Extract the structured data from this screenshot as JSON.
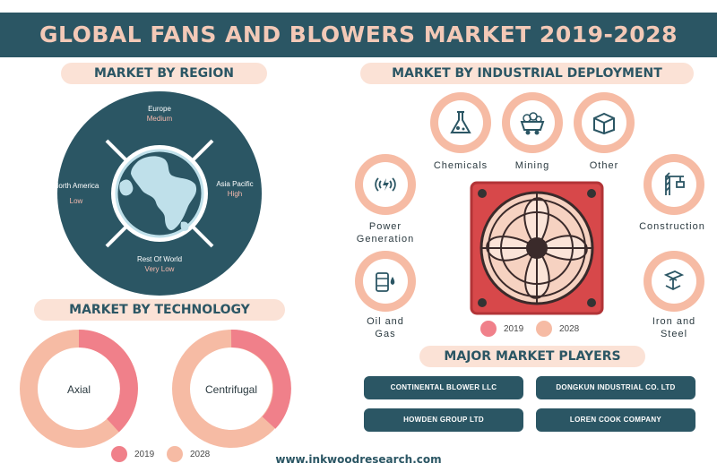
{
  "title": "GLOBAL FANS AND BLOWERS MARKET 2019-2028",
  "region_section": {
    "heading": "MARKET BY REGION",
    "segments": [
      {
        "region": "Europe",
        "level": "Medium"
      },
      {
        "region": "Asia Pacific",
        "level": "High"
      },
      {
        "region": "Rest Of World",
        "level": "Very Low"
      },
      {
        "region": "North America",
        "level": "Low"
      }
    ],
    "colors": {
      "ring": "#2b5664",
      "globe_land": "#bfe0ea",
      "globe_water": "#2b5664"
    }
  },
  "technology_section": {
    "heading": "MARKET BY TECHNOLOGY",
    "items": [
      "Axial",
      "Centrifugal"
    ],
    "legend": [
      "2019",
      "2028"
    ],
    "colors": {
      "y2019": "#f0808a",
      "y2028": "#f6bba4"
    }
  },
  "industrial_section": {
    "heading": "MARKET BY INDUSTRIAL DEPLOYMENT",
    "items": [
      {
        "label": "Chemicals",
        "icon": "flask-icon"
      },
      {
        "label": "Mining",
        "icon": "mine-cart-icon"
      },
      {
        "label": "Other",
        "icon": "box-icon"
      },
      {
        "label_lines": [
          "Power",
          "Generation"
        ],
        "icon": "power-icon"
      },
      {
        "label": "Construction",
        "icon": "crane-icon"
      },
      {
        "label_lines": [
          "Oil and",
          "Gas"
        ],
        "icon": "oil-barrel-icon"
      },
      {
        "label_lines": [
          "Iron and",
          "Steel"
        ],
        "icon": "steel-beam-icon"
      }
    ],
    "legend": [
      "2019",
      "2028"
    ]
  },
  "players_section": {
    "heading": "MAJOR MARKET PLAYERS",
    "players": [
      "CONTINENTAL BLOWER LLC",
      "DONGKUN INDUSTRIAL CO. LTD",
      "HOWDEN GROUP LTD",
      "LOREN COOK COMPANY"
    ]
  },
  "footer": {
    "url": "www.inkwoodresearch.com"
  }
}
